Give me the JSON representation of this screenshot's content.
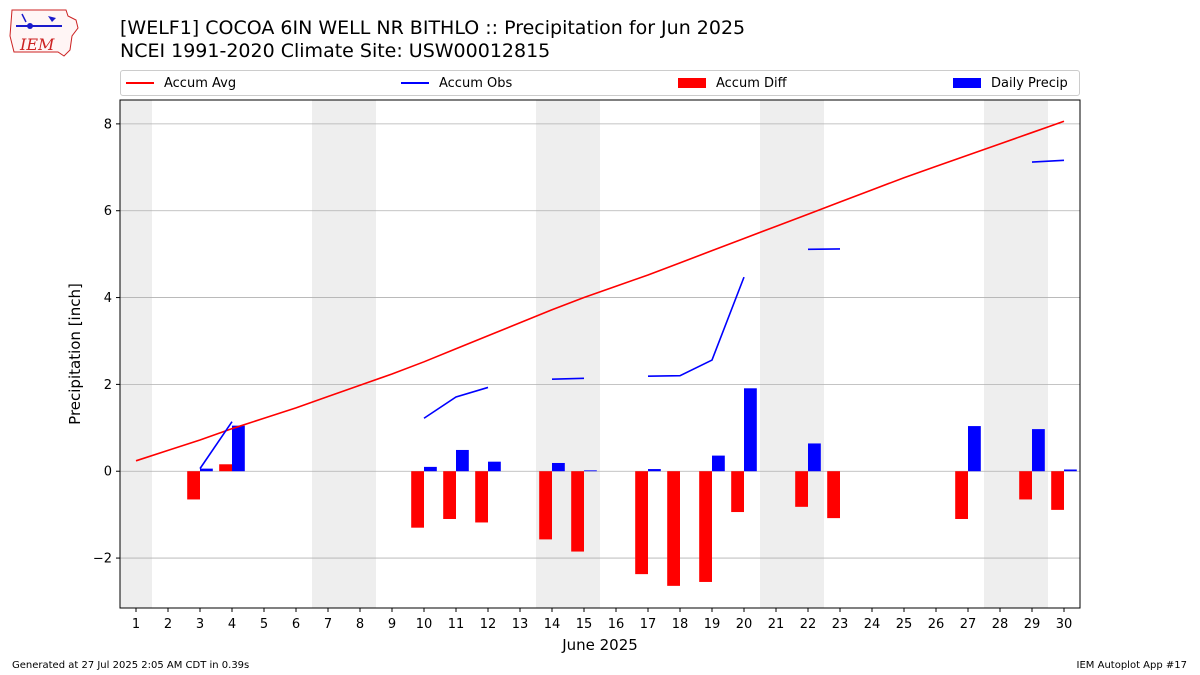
{
  "logo_text": "IEM",
  "title_line1": "[WELF1] COCOA 6IN WELL NR BITHLO :: Precipitation for Jun 2025",
  "title_line2": "NCEI 1991-2020 Climate Site: USW00012815",
  "footer_left": "Generated at 27 Jul 2025 2:05 AM CDT in 0.39s",
  "footer_right": "IEM Autoplot App #17",
  "colors": {
    "avg": "#ff0000",
    "obs": "#0000ff",
    "diff": "#ff0000",
    "daily": "#0000ff",
    "weekend": "#eeeeee",
    "grid": "#b0b0b0"
  },
  "chart_data": {
    "type": "bar",
    "xlabel": "June 2025",
    "ylabel": "Precipitation [inch]",
    "xlim": [
      0.5,
      30.5
    ],
    "ylim": [
      -3.15,
      8.55
    ],
    "y_ticks": [
      -2,
      0,
      2,
      4,
      6,
      8
    ],
    "y_tick_labels": [
      "−2",
      "0",
      "2",
      "4",
      "6",
      "8"
    ],
    "x_ticks": [
      1,
      2,
      3,
      4,
      5,
      6,
      7,
      8,
      9,
      10,
      11,
      12,
      13,
      14,
      15,
      16,
      17,
      18,
      19,
      20,
      21,
      22,
      23,
      24,
      25,
      26,
      27,
      28,
      29,
      30
    ],
    "x_tick_labels": [
      "1",
      "2",
      "3",
      "4",
      "5",
      "6",
      "7",
      "8",
      "9",
      "10",
      "11",
      "12",
      "13",
      "14",
      "15",
      "16",
      "17",
      "18",
      "19",
      "20",
      "21",
      "22",
      "23",
      "24",
      "25",
      "26",
      "27",
      "28",
      "29",
      "30"
    ],
    "grid": "y",
    "legend_position": "top, above plot",
    "weekend_shading": [
      [
        0.5,
        1.5
      ],
      [
        6.5,
        8.5
      ],
      [
        13.5,
        15.5
      ],
      [
        20.5,
        22.5
      ],
      [
        27.5,
        29.5
      ]
    ],
    "series": [
      {
        "name": "Accum Avg",
        "kind": "line",
        "x": [
          1,
          2,
          3,
          4,
          5,
          6,
          7,
          8,
          9,
          10,
          11,
          12,
          13,
          14,
          15,
          16,
          17,
          18,
          19,
          20,
          21,
          22,
          23,
          24,
          25,
          26,
          27,
          28,
          29,
          30
        ],
        "values": [
          0.24,
          0.48,
          0.72,
          0.98,
          1.22,
          1.46,
          1.72,
          1.98,
          2.24,
          2.52,
          2.82,
          3.12,
          3.42,
          3.72,
          4.0,
          4.26,
          4.52,
          4.8,
          5.08,
          5.36,
          5.64,
          5.92,
          6.2,
          6.48,
          6.76,
          7.02,
          7.28,
          7.54,
          7.8,
          8.06
        ]
      },
      {
        "name": "Accum Obs",
        "kind": "line",
        "segments": [
          [
            [
              3,
              0.06
            ],
            [
              4,
              1.14
            ]
          ],
          [
            [
              10,
              1.22
            ],
            [
              11,
              1.71
            ],
            [
              12,
              1.93
            ]
          ],
          [
            [
              14,
              2.12
            ],
            [
              15,
              2.14
            ]
          ],
          [
            [
              17,
              2.19
            ],
            [
              18,
              2.2
            ],
            [
              19,
              2.56
            ],
            [
              20,
              4.47
            ]
          ],
          [
            [
              22,
              5.11
            ],
            [
              23,
              5.12
            ]
          ],
          [
            [
              29,
              7.12
            ],
            [
              30,
              7.16
            ]
          ]
        ]
      },
      {
        "name": "Accum Diff",
        "kind": "bar",
        "x": [
          3,
          4,
          10,
          11,
          12,
          14,
          15,
          17,
          18,
          19,
          20,
          22,
          23,
          27,
          29,
          30
        ],
        "values": [
          -0.65,
          0.16,
          -1.3,
          -1.1,
          -1.18,
          -1.57,
          -1.85,
          -2.37,
          -2.64,
          -2.55,
          -0.94,
          -0.82,
          -1.08,
          -1.1,
          -0.65,
          -0.89
        ]
      },
      {
        "name": "Daily Precip",
        "kind": "bar",
        "x": [
          3,
          4,
          10,
          11,
          12,
          14,
          15,
          17,
          19,
          20,
          22,
          27,
          29,
          30
        ],
        "values": [
          0.06,
          1.05,
          0.1,
          0.49,
          0.22,
          0.19,
          0.02,
          0.05,
          0.36,
          1.91,
          0.64,
          1.04,
          0.97,
          0.04
        ]
      }
    ]
  }
}
